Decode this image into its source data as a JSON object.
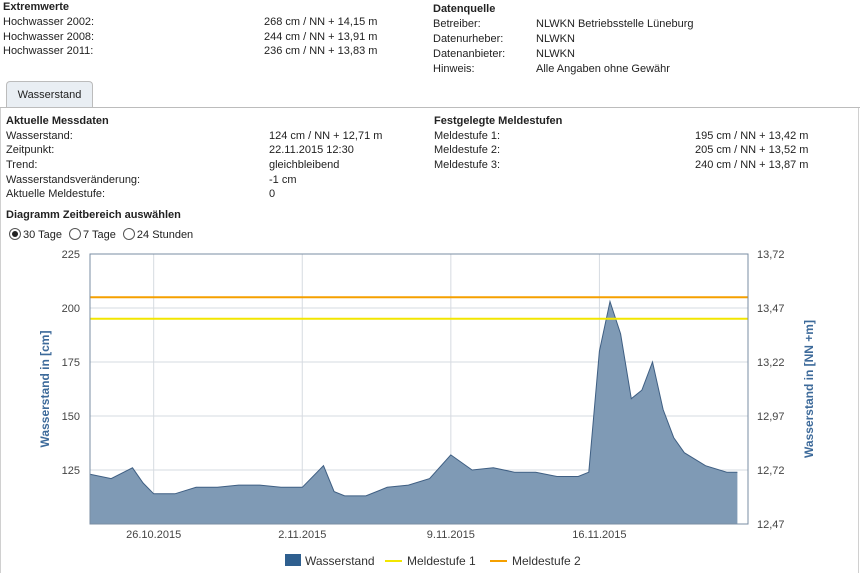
{
  "extremwerte": {
    "title": "Extremwerte",
    "rows": [
      {
        "label": "Hochwasser 2002:",
        "value": "268 cm / NN + 14,15 m"
      },
      {
        "label": "Hochwasser 2008:",
        "value": "244 cm / NN + 13,91 m"
      },
      {
        "label": "Hochwasser 2011:",
        "value": "236 cm / NN + 13,83 m"
      }
    ]
  },
  "datenquelle": {
    "title": "Datenquelle",
    "rows": [
      {
        "label": "Betreiber:",
        "value": "NLWKN Betriebsstelle Lüneburg"
      },
      {
        "label": "Datenurheber:",
        "value": "NLWKN"
      },
      {
        "label": "Datenanbieter:",
        "value": "NLWKN"
      },
      {
        "label": "Hinweis:",
        "value": "Alle Angaben ohne Gewähr"
      }
    ]
  },
  "tab": {
    "label": "Wasserstand"
  },
  "messdaten": {
    "title": "Aktuelle Messdaten",
    "rows": [
      {
        "label": "Wasserstand:",
        "value": "124 cm / NN + 12,71 m"
      },
      {
        "label": "Zeitpunkt:",
        "value": "22.11.2015 12:30"
      },
      {
        "label": "Trend:",
        "value": "gleichbleibend"
      },
      {
        "label": "Wasserstandsveränderung:",
        "value": "-1 cm"
      },
      {
        "label": "Aktuelle Meldestufe:",
        "value": "0"
      }
    ]
  },
  "meldestufen": {
    "title": "Festgelegte Meldestufen",
    "rows": [
      {
        "label": "Meldestufe 1:",
        "value": "195 cm / NN + 13,42 m"
      },
      {
        "label": "Meldestufe 2:",
        "value": "205 cm / NN + 13,52 m"
      },
      {
        "label": "Meldestufe 3:",
        "value": "240 cm / NN + 13,87 m"
      }
    ]
  },
  "zeitbereich": {
    "title": "Diagramm Zeitbereich auswählen",
    "options": [
      "30 Tage",
      "7 Tage",
      "24 Stunden"
    ],
    "selected": "30 Tage"
  },
  "colors": {
    "area": "#7f9ab5",
    "area_line": "#3f5f83",
    "meldestufe1": "#f2e600",
    "meldestufe2": "#f5a000",
    "legend_area": "#2f5f8f"
  },
  "chart_data": {
    "type": "area",
    "ylabel": "Wasserstand in [cm]",
    "y2label": "Wasserstand in [NN +m]",
    "ylim": [
      100,
      225
    ],
    "y_ticks": [
      125,
      150,
      175,
      200,
      225
    ],
    "y2_ticks": [
      "12,47",
      "12,72",
      "12,97",
      "13,22",
      "13,47",
      "13,72"
    ],
    "x_ticks": [
      "26.10.2015",
      "2.11.2015",
      "9.11.2015",
      "16.11.2015"
    ],
    "x_start": "2015-10-23",
    "x_end": "2015-11-23",
    "grid": true,
    "legend_position": "bottom",
    "series": [
      {
        "name": "Wasserstand",
        "x": [
          "2015-10-23",
          "2015-10-24",
          "2015-10-25",
          "2015-10-25T12",
          "2015-10-26",
          "2015-10-27",
          "2015-10-28",
          "2015-10-29",
          "2015-10-30",
          "2015-10-31",
          "2015-11-01",
          "2015-11-02",
          "2015-11-03",
          "2015-11-03T12",
          "2015-11-04",
          "2015-11-05",
          "2015-11-06",
          "2015-11-07",
          "2015-11-08",
          "2015-11-09",
          "2015-11-10",
          "2015-11-11",
          "2015-11-12",
          "2015-11-13",
          "2015-11-14",
          "2015-11-15",
          "2015-11-15T12",
          "2015-11-16",
          "2015-11-16T12",
          "2015-11-17",
          "2015-11-17T12",
          "2015-11-18",
          "2015-11-18T12",
          "2015-11-19",
          "2015-11-19T12",
          "2015-11-20",
          "2015-11-21",
          "2015-11-22",
          "2015-11-22T12"
        ],
        "values": [
          123,
          121,
          126,
          119,
          114,
          114,
          117,
          117,
          118,
          118,
          117,
          117,
          127,
          115,
          113,
          113,
          117,
          118,
          121,
          132,
          125,
          126,
          124,
          124,
          122,
          122,
          124,
          180,
          203,
          188,
          158,
          162,
          175,
          153,
          140,
          133,
          127,
          124,
          124
        ]
      },
      {
        "name": "Meldestufe 1",
        "value": 195
      },
      {
        "name": "Meldestufe 2",
        "value": 205
      }
    ]
  }
}
